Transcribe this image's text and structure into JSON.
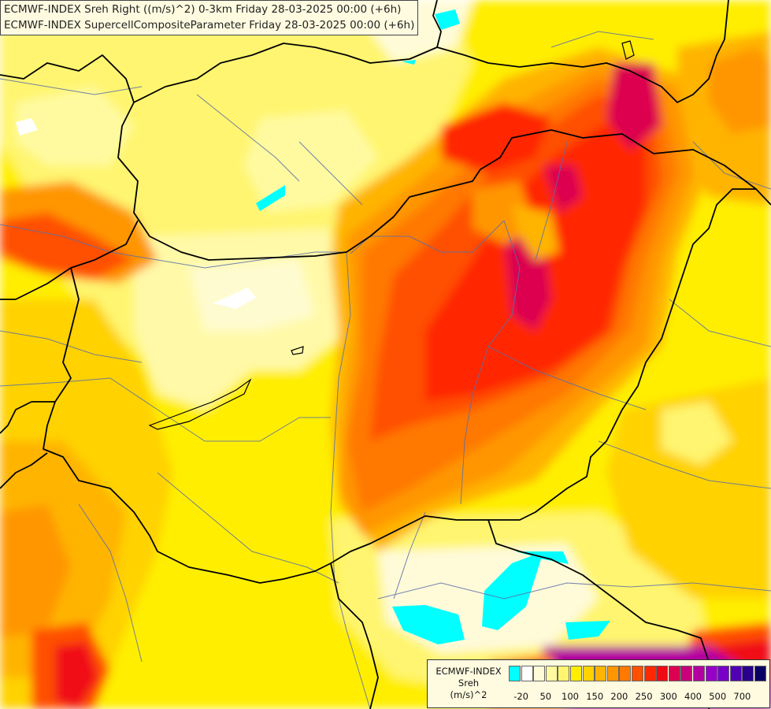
{
  "title_lines": [
    "ECMWF-INDEX Sreh Right ((m/s)^2) 0-3km Friday 28-03-2025 00:00 (+6h)",
    "ECMWF-INDEX SupercellCompositeParameter Friday 28-03-2025 00:00 (+6h)"
  ],
  "legend": {
    "title_lines": [
      "ECMWF-INDEX",
      "Sreh",
      "(m/s)^2"
    ],
    "swatches": [
      "#00ffff",
      "#ffffff",
      "#fffad8",
      "#fffaa0",
      "#fff570",
      "#ffee00",
      "#ffd200",
      "#ffb400",
      "#ff9600",
      "#ff7800",
      "#ff5000",
      "#ff2800",
      "#f00a14",
      "#dc0050",
      "#c8007a",
      "#b400a0",
      "#9600c8",
      "#7800c8",
      "#5000b4",
      "#28008c",
      "#0a0064"
    ],
    "ticks": [
      {
        "label": "-20",
        "slot": 0.5
      },
      {
        "label": "50",
        "slot": 2.5
      },
      {
        "label": "100",
        "slot": 4.5
      },
      {
        "label": "150",
        "slot": 6.5
      },
      {
        "label": "200",
        "slot": 8.5
      },
      {
        "label": "250",
        "slot": 10.5
      },
      {
        "label": "300",
        "slot": 12.5
      },
      {
        "label": "400",
        "slot": 14.5
      },
      {
        "label": "500",
        "slot": 16.5
      },
      {
        "label": "700",
        "slot": 18.5
      }
    ]
  }
}
